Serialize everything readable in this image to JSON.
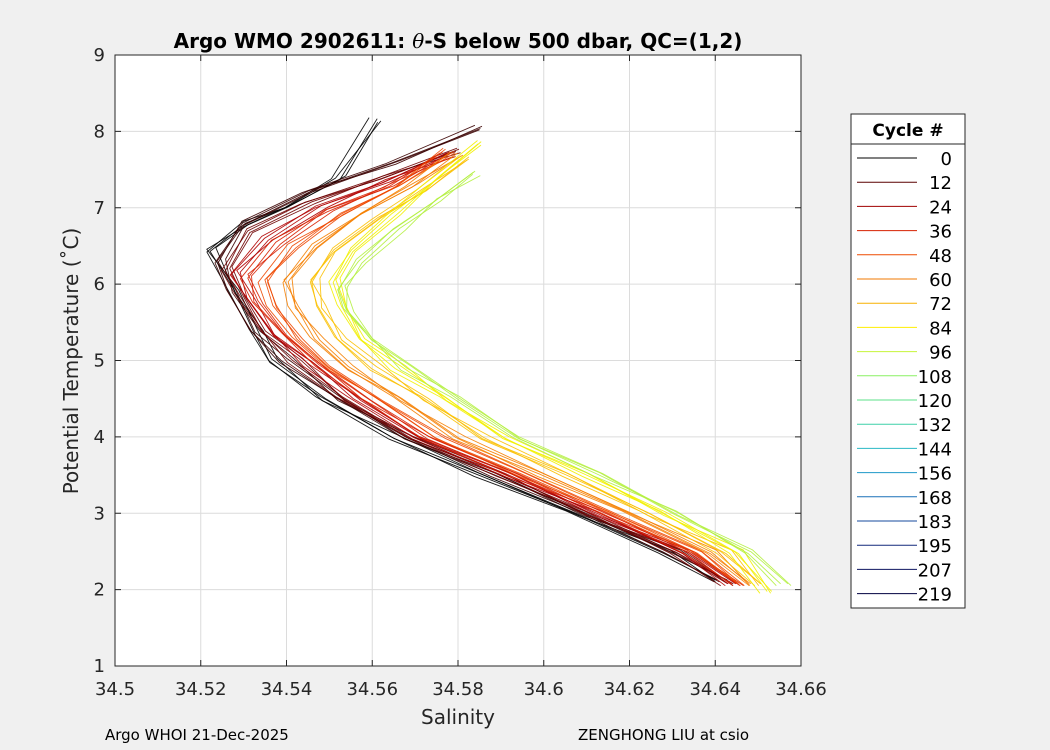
{
  "chart_data": {
    "type": "line",
    "title_prefix": "Argo WMO 2902611: ",
    "title_theta": "θ",
    "title_suffix": "-S below 500 dbar,  QC=(1,2)",
    "xlabel": "Salinity",
    "ylabel": "Potential Temperature (˚C)",
    "xlim": [
      34.5,
      34.66
    ],
    "ylim": [
      1,
      9
    ],
    "xticks": [
      34.5,
      34.52,
      34.54,
      34.56,
      34.58,
      34.6,
      34.62,
      34.64,
      34.66
    ],
    "xtick_labels": [
      "34.5",
      "34.52",
      "34.54",
      "34.56",
      "34.58",
      "34.6",
      "34.62",
      "34.64",
      "34.66"
    ],
    "yticks": [
      1,
      2,
      3,
      4,
      5,
      6,
      7,
      8,
      9
    ],
    "ytick_labels": [
      "1",
      "2",
      "3",
      "4",
      "5",
      "6",
      "7",
      "8",
      "9"
    ],
    "grid": true,
    "legend_title": "Cycle #",
    "legend_position": "right",
    "legend": [
      {
        "label": "0",
        "color": "#000000"
      },
      {
        "label": "12",
        "color": "#5a0000"
      },
      {
        "label": "24",
        "color": "#a00000"
      },
      {
        "label": "36",
        "color": "#d62000"
      },
      {
        "label": "48",
        "color": "#ee4a00"
      },
      {
        "label": "60",
        "color": "#f27a00"
      },
      {
        "label": "72",
        "color": "#f7b000"
      },
      {
        "label": "84",
        "color": "#ffee00"
      },
      {
        "label": "96",
        "color": "#c6f53a"
      },
      {
        "label": "108",
        "color": "#8af064"
      },
      {
        "label": "120",
        "color": "#5ee08a"
      },
      {
        "label": "132",
        "color": "#3fd0a8"
      },
      {
        "label": "144",
        "color": "#2ab8c4"
      },
      {
        "label": "156",
        "color": "#1e98c8"
      },
      {
        "label": "168",
        "color": "#1a70b8"
      },
      {
        "label": "183",
        "color": "#16489c"
      },
      {
        "label": "195",
        "color": "#12287c"
      },
      {
        "label": "207",
        "color": "#0e1460"
      },
      {
        "label": "219",
        "color": "#000040"
      }
    ],
    "series": [
      {
        "name": "0",
        "color": "#000000",
        "x": [
          34.561,
          34.552,
          34.54,
          34.53,
          34.522,
          34.528,
          34.533,
          34.537,
          34.548,
          34.565,
          34.585,
          34.607,
          34.628,
          34.64
        ],
        "y": [
          8.15,
          7.4,
          7.0,
          6.8,
          6.45,
          5.9,
          5.4,
          5.0,
          4.5,
          4.0,
          3.5,
          3.0,
          2.5,
          2.1
        ]
      },
      {
        "name": "12",
        "color": "#3a0000",
        "x": [
          34.585,
          34.565,
          34.545,
          34.53,
          34.524,
          34.527,
          34.533,
          34.54,
          34.552,
          34.568,
          34.588,
          34.609,
          34.63,
          34.642
        ],
        "y": [
          8.05,
          7.6,
          7.2,
          6.8,
          6.3,
          5.9,
          5.4,
          5.0,
          4.5,
          4.0,
          3.5,
          3.0,
          2.5,
          2.1
        ]
      },
      {
        "name": "24",
        "color": "#6e0000",
        "x": [
          34.58,
          34.562,
          34.545,
          34.532,
          34.526,
          34.529,
          34.535,
          34.542,
          34.553,
          34.569,
          34.589,
          34.61,
          34.631,
          34.643
        ],
        "y": [
          7.75,
          7.4,
          7.05,
          6.7,
          6.2,
          5.85,
          5.4,
          5.0,
          4.5,
          4.0,
          3.5,
          3.0,
          2.5,
          2.05
        ]
      },
      {
        "name": "36",
        "color": "#b00000",
        "x": [
          34.578,
          34.563,
          34.548,
          34.536,
          34.528,
          34.531,
          34.537,
          34.545,
          34.556,
          34.571,
          34.591,
          34.612,
          34.633,
          34.644
        ],
        "y": [
          7.7,
          7.35,
          7.0,
          6.6,
          6.15,
          5.8,
          5.35,
          4.95,
          4.5,
          4.0,
          3.5,
          3.0,
          2.5,
          2.05
        ]
      },
      {
        "name": "48",
        "color": "#d82000",
        "x": [
          34.577,
          34.564,
          34.55,
          34.538,
          34.531,
          34.533,
          34.539,
          34.547,
          34.558,
          34.573,
          34.593,
          34.614,
          34.634,
          34.645
        ],
        "y": [
          7.7,
          7.3,
          6.95,
          6.55,
          6.1,
          5.75,
          5.35,
          4.95,
          4.5,
          4.0,
          3.5,
          3.0,
          2.5,
          2.05
        ]
      },
      {
        "name": "60",
        "color": "#ee4800",
        "x": [
          34.578,
          34.566,
          34.553,
          34.541,
          34.535,
          34.537,
          34.542,
          34.55,
          34.561,
          34.576,
          34.596,
          34.616,
          34.636,
          34.646
        ],
        "y": [
          7.75,
          7.3,
          6.9,
          6.5,
          6.05,
          5.7,
          5.3,
          4.9,
          4.5,
          4.0,
          3.5,
          3.0,
          2.5,
          2.05
        ]
      },
      {
        "name": "72",
        "color": "#f58000",
        "x": [
          34.58,
          34.569,
          34.557,
          34.546,
          34.54,
          34.542,
          34.547,
          34.555,
          34.566,
          34.58,
          34.6,
          34.62,
          34.639,
          34.648
        ],
        "y": [
          7.7,
          7.3,
          6.9,
          6.5,
          6.05,
          5.7,
          5.3,
          4.9,
          4.5,
          4.0,
          3.5,
          3.0,
          2.5,
          2.05
        ]
      },
      {
        "name": "84",
        "color": "#fbc000",
        "x": [
          34.582,
          34.572,
          34.561,
          34.551,
          34.546,
          34.548,
          34.553,
          34.561,
          34.572,
          34.586,
          34.605,
          34.624,
          34.642,
          34.65
        ],
        "y": [
          7.65,
          7.25,
          6.85,
          6.45,
          6.05,
          5.7,
          5.3,
          4.9,
          4.5,
          4.0,
          3.5,
          3.0,
          2.5,
          2.05
        ]
      },
      {
        "name": "96",
        "color": "#f2f000",
        "x": [
          34.585,
          34.575,
          34.565,
          34.556,
          34.551,
          34.553,
          34.558,
          34.566,
          34.577,
          34.591,
          34.609,
          34.628,
          34.645,
          34.652
        ],
        "y": [
          7.85,
          7.4,
          6.9,
          6.45,
          6.05,
          5.7,
          5.3,
          4.9,
          4.5,
          4.0,
          3.5,
          3.0,
          2.5,
          1.95
        ]
      },
      {
        "name": "108",
        "color": "#b4f040",
        "x": [
          34.584,
          34.575,
          34.566,
          34.558,
          34.553,
          34.554,
          34.56,
          34.568,
          34.58,
          34.594,
          34.612,
          34.631,
          34.648,
          34.656
        ],
        "y": [
          7.45,
          7.1,
          6.7,
          6.3,
          5.95,
          5.65,
          5.3,
          4.9,
          4.5,
          4.0,
          3.5,
          3.0,
          2.5,
          2.05
        ]
      }
    ]
  },
  "footer": {
    "left": "Argo WHOI 21-Dec-2025",
    "right": "ZENGHONG LIU at csio"
  }
}
